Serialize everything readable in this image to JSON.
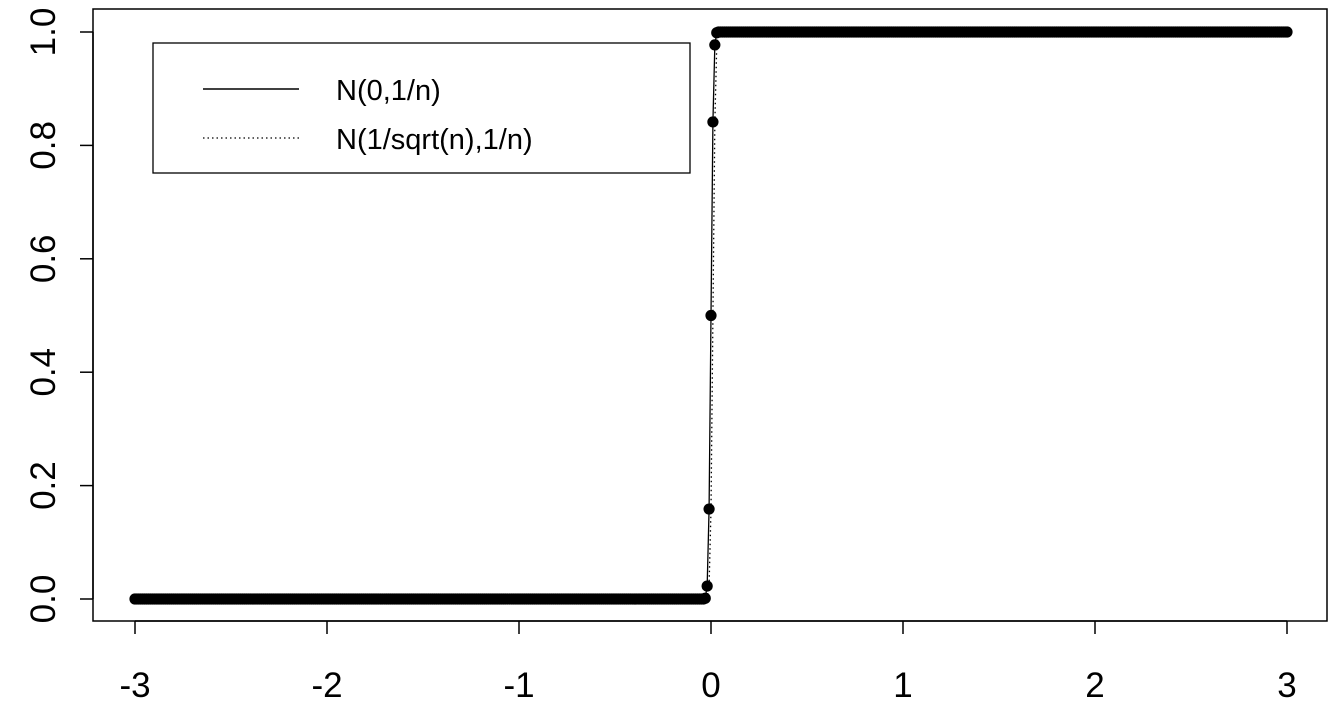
{
  "chart_data": {
    "type": "line",
    "title": "",
    "xlabel": "",
    "ylabel": "",
    "xlim": [
      -3,
      3
    ],
    "ylim": [
      0,
      1
    ],
    "x_ticks": [
      "-3",
      "-2",
      "-1",
      "0",
      "1",
      "2",
      "3"
    ],
    "y_ticks": [
      "0.0",
      "0.2",
      "0.4",
      "0.6",
      "0.8",
      "1.0"
    ],
    "grid": false,
    "legend_position": "top-left",
    "series": [
      {
        "name": "N(0,1/n)",
        "line_style": "solid",
        "color": "#000000",
        "markers": true,
        "x_range": [
          -3,
          3
        ],
        "n_points": 601,
        "mean": 0,
        "sd": 0.01
      },
      {
        "name": "N(1/sqrt(n),1/n)",
        "line_style": "dotted",
        "color": "#000000",
        "markers": false,
        "x_range": [
          -3,
          3
        ],
        "n_points": 601,
        "mean": 0.01,
        "sd": 0.01
      }
    ]
  }
}
